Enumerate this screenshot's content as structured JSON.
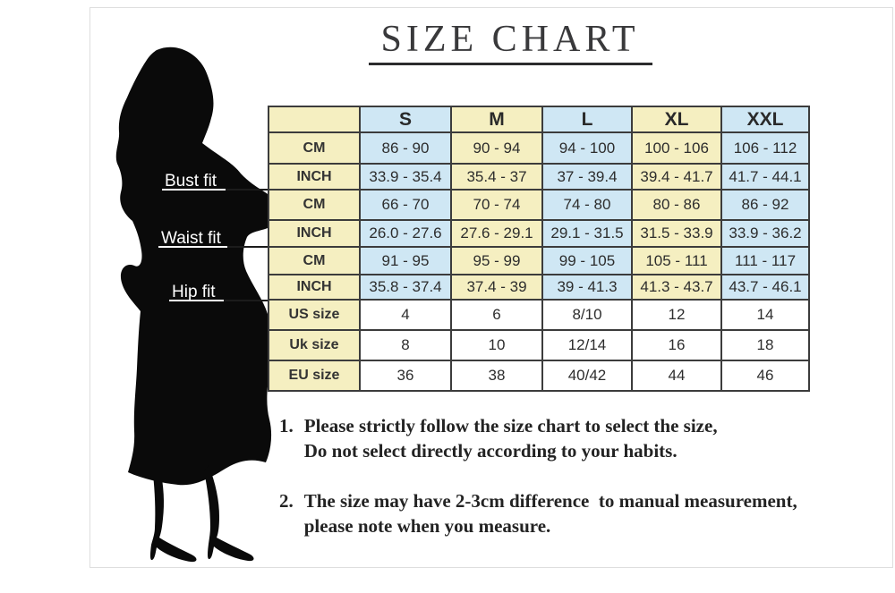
{
  "title": "SIZE CHART",
  "figure": {
    "labels": [
      "Bust fit",
      "Waist fit",
      "Hip fit"
    ]
  },
  "chart_data": {
    "type": "table",
    "title": "SIZE CHART",
    "columns": [
      "",
      "S",
      "M",
      "L",
      "XL",
      "XXL"
    ],
    "rows": [
      {
        "section": "Bust fit",
        "label": "CM",
        "values": [
          "86 - 90",
          "90 - 94",
          "94 - 100",
          "100 - 106",
          "106 - 112"
        ]
      },
      {
        "section": "Bust fit",
        "label": "INCH",
        "values": [
          "33.9 - 35.4",
          "35.4 - 37",
          "37 - 39.4",
          "39.4 - 41.7",
          "41.7 - 44.1"
        ]
      },
      {
        "section": "Waist fit",
        "label": "CM",
        "values": [
          "66 - 70",
          "70 - 74",
          "74 - 80",
          "80 - 86",
          "86 - 92"
        ]
      },
      {
        "section": "Waist fit",
        "label": "INCH",
        "values": [
          "26.0 - 27.6",
          "27.6 - 29.1",
          "29.1 - 31.5",
          "31.5 - 33.9",
          "33.9 - 36.2"
        ]
      },
      {
        "section": "Hip fit",
        "label": "CM",
        "values": [
          "91 - 95",
          "95 - 99",
          "99 - 105",
          "105 - 111",
          "111 - 117"
        ]
      },
      {
        "section": "Hip fit",
        "label": "INCH",
        "values": [
          "35.8 - 37.4",
          "37.4 - 39",
          "39 - 41.3",
          "41.3 - 43.7",
          "43.7 - 46.1"
        ]
      },
      {
        "label": "US size",
        "plain": true,
        "values": [
          "4",
          "6",
          "8/10",
          "12",
          "14"
        ]
      },
      {
        "label": "Uk size",
        "plain": true,
        "values": [
          "8",
          "10",
          "12/14",
          "16",
          "18"
        ]
      },
      {
        "label": "EU size",
        "plain": true,
        "values": [
          "36",
          "38",
          "40/42",
          "44",
          "46"
        ]
      }
    ],
    "layout": {
      "grid": "on",
      "striped_columns": true
    }
  },
  "notes": [
    {
      "num": "1.",
      "lines": [
        "Please strictly follow the size chart to select the size,",
        "Do not select directly according to your habits."
      ]
    },
    {
      "num": "2.",
      "lines": [
        "The size may have 2-3cm difference  to manual measurement,",
        "please note when you measure."
      ]
    }
  ],
  "colors": {
    "cell_yellow": "#f5efc1",
    "cell_blue": "#cfe7f4",
    "cell_white": "#ffffff",
    "grid_line": "#3c3c3c",
    "silhouette": "#0a0a0a",
    "fit_label_text": "#ffffff",
    "title_text": "#39393b",
    "note_text": "#232323"
  }
}
